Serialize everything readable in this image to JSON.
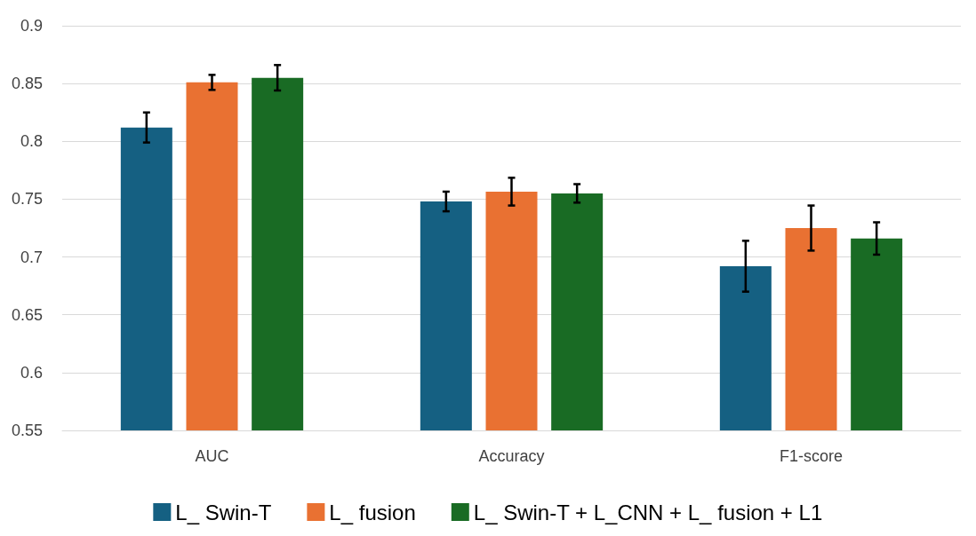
{
  "chart_data": {
    "type": "bar",
    "categories": [
      "AUC",
      "Accuracy",
      "F1-score"
    ],
    "series": [
      {
        "name": "L_ Swin-T",
        "color": "#156082",
        "values": [
          0.812,
          0.748,
          0.692
        ],
        "errors": [
          0.013,
          0.0085,
          0.022
        ]
      },
      {
        "name": "L_ fusion",
        "color": "#e97132",
        "values": [
          0.851,
          0.7565,
          0.725
        ],
        "errors": [
          0.0065,
          0.012,
          0.0195
        ]
      },
      {
        "name": "L_ Swin-T + L_CNN + L_ fusion + L1",
        "color": "#196b24",
        "values": [
          0.855,
          0.755,
          0.716
        ],
        "errors": [
          0.011,
          0.008,
          0.014
        ]
      }
    ],
    "ylim": [
      0.55,
      0.9
    ],
    "yticks": [
      0.55,
      0.6,
      0.65,
      0.7,
      0.75,
      0.8,
      0.85,
      0.9
    ],
    "grid": "y",
    "legend": "bottom"
  }
}
